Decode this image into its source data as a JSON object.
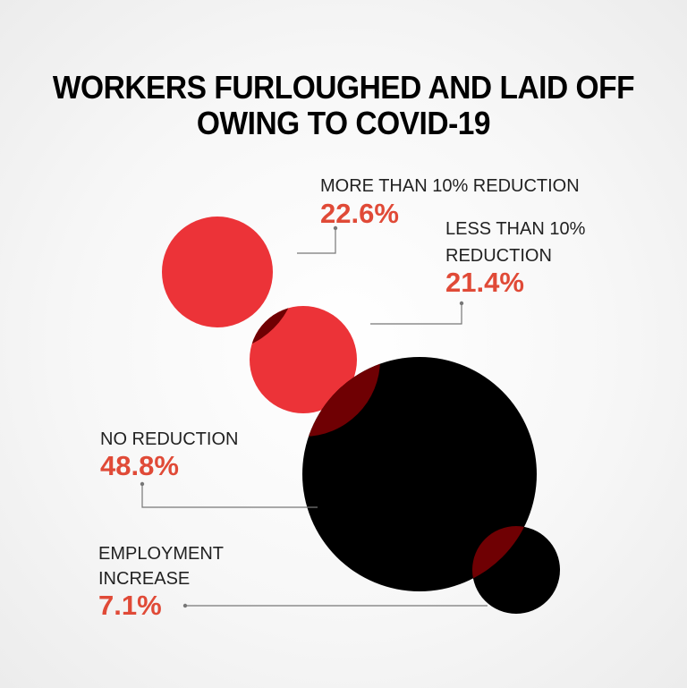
{
  "title": {
    "line1": "WORKERS FURLOUGHED AND LAID OFF",
    "line2": "OWING TO COVID-19"
  },
  "colors": {
    "red": "#ec3338",
    "black": "#000000",
    "overlap": "#6f0003",
    "value": "#e04a37",
    "leader": "#777777"
  },
  "chart_data": {
    "type": "bubble",
    "title": "WORKERS FURLOUGHED AND LAID OFF OWING TO COVID-19",
    "unit": "%",
    "items": [
      {
        "label_lines": [
          "MORE THAN 10% REDUCTION"
        ],
        "value": 22.6,
        "value_text": "22.6%",
        "color": "#ec3338"
      },
      {
        "label_lines": [
          "LESS THAN 10%",
          "REDUCTION"
        ],
        "value": 21.4,
        "value_text": "21.4%",
        "color": "#ec3338"
      },
      {
        "label_lines": [
          "NO REDUCTION"
        ],
        "value": 48.8,
        "value_text": "48.8%",
        "color": "#000000"
      },
      {
        "label_lines": [
          "EMPLOYMENT",
          "INCREASE"
        ],
        "value": 7.1,
        "value_text": "7.1%",
        "color": "#000000"
      }
    ]
  }
}
